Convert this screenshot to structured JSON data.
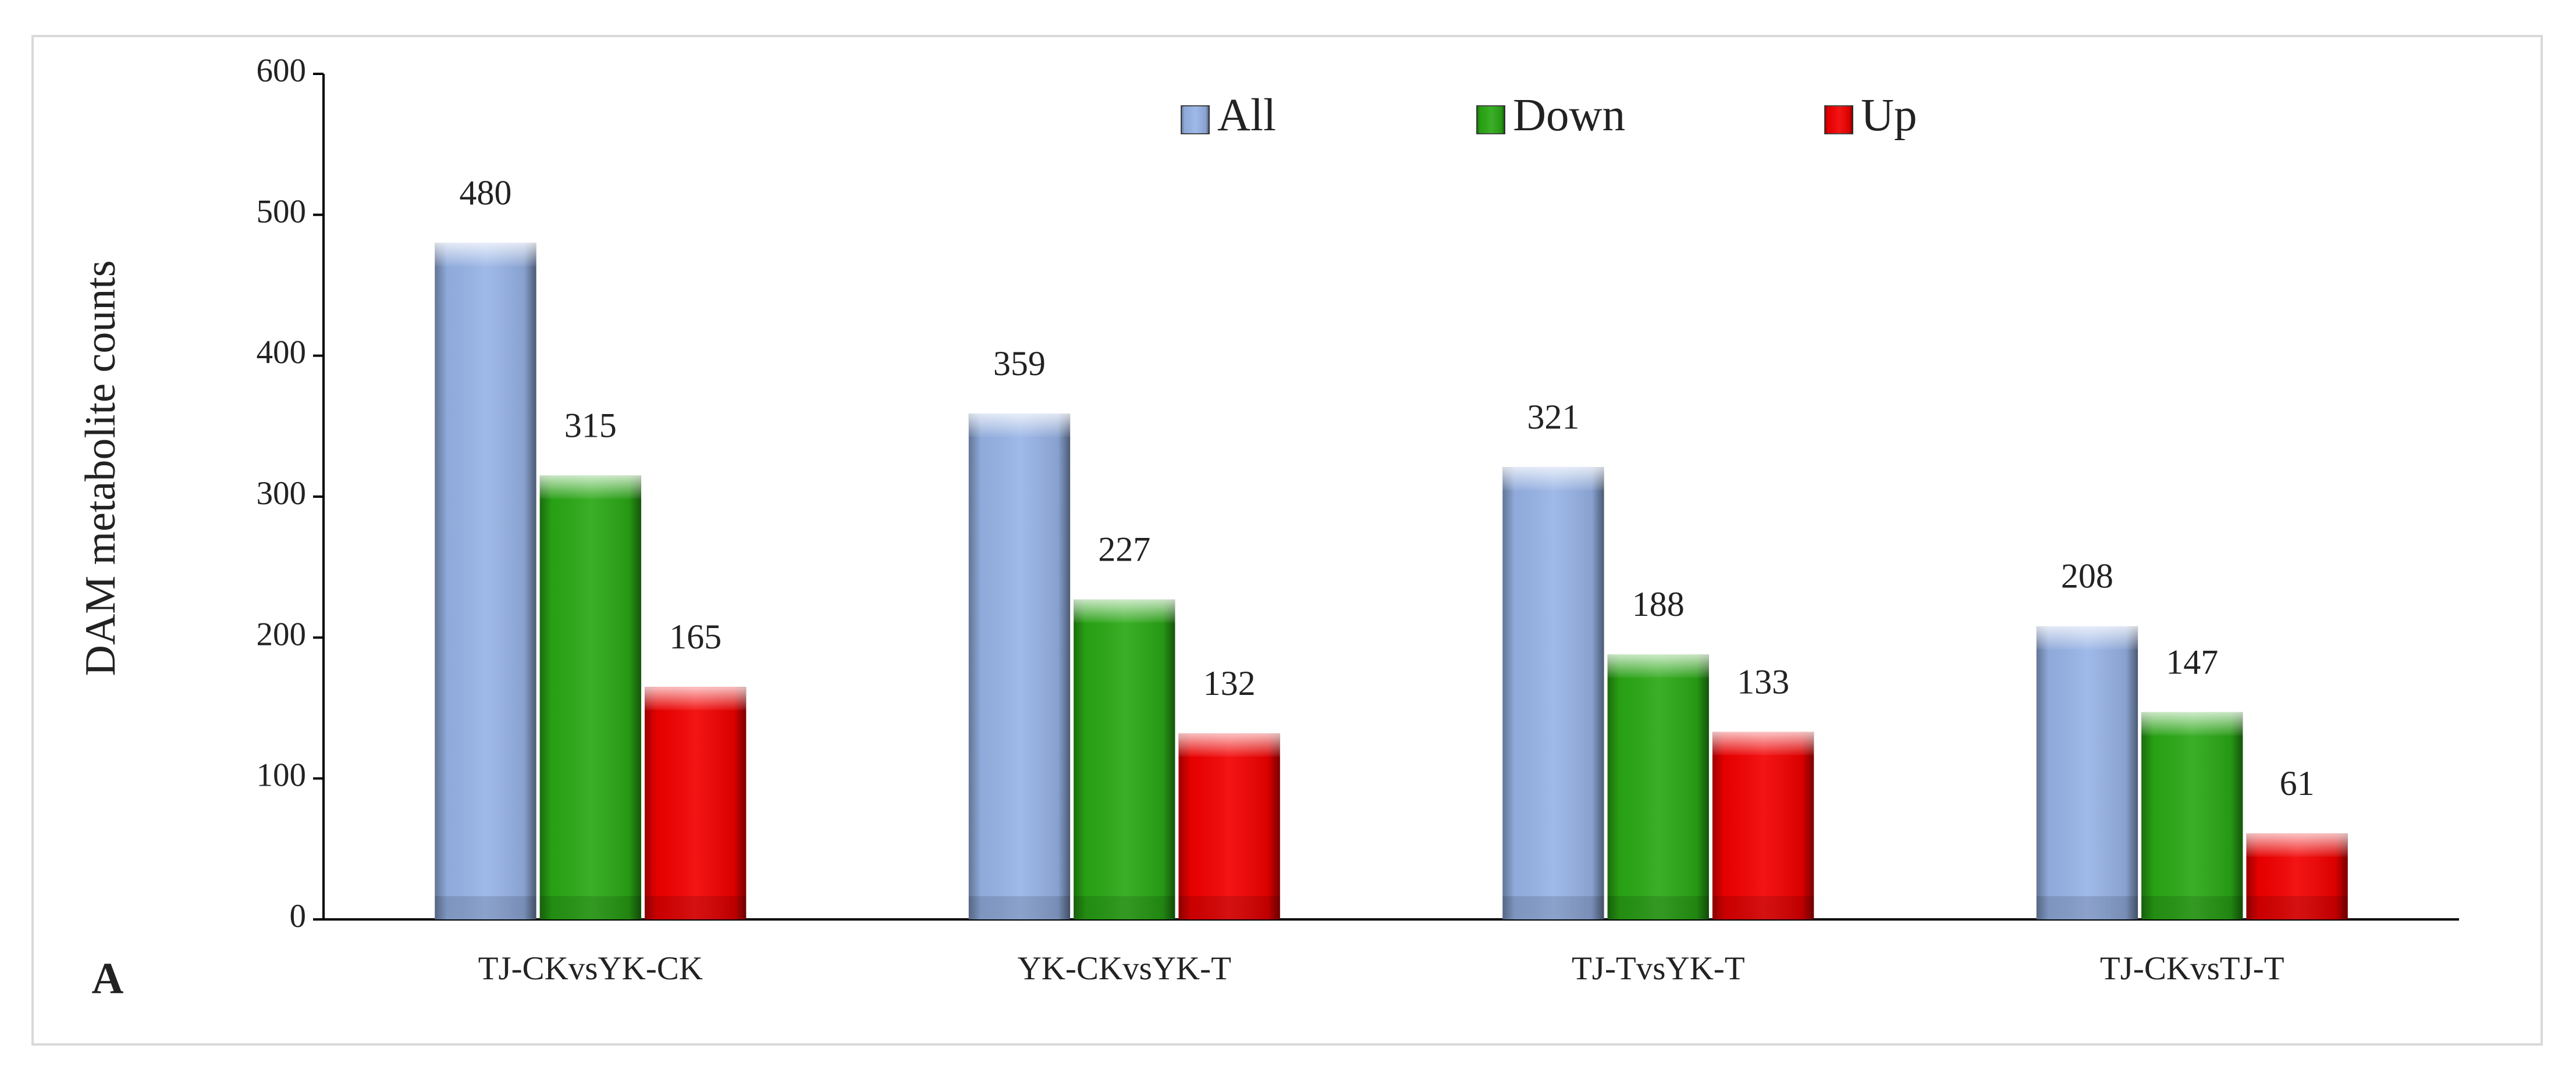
{
  "chart_data": {
    "type": "bar",
    "y_axis_label": "DAM metabolite counts",
    "panel_label": "A",
    "categories": [
      "TJ-CKvsYK-CK",
      "YK-CKvsYK-T",
      "TJ-TvsYK-T",
      "TJ-CKvsTJ-T"
    ],
    "series": [
      {
        "name": "All",
        "color": "#97b3e6",
        "values": [
          480,
          359,
          321,
          208
        ]
      },
      {
        "name": "Down",
        "color": "#2aa815",
        "values": [
          315,
          227,
          188,
          147
        ]
      },
      {
        "name": "Up",
        "color": "#f20000",
        "values": [
          165,
          132,
          133,
          61
        ]
      }
    ],
    "ylim": [
      0,
      600
    ],
    "yticks": [
      0,
      100,
      200,
      300,
      400,
      500,
      600
    ],
    "legend": "top",
    "grid": false
  }
}
